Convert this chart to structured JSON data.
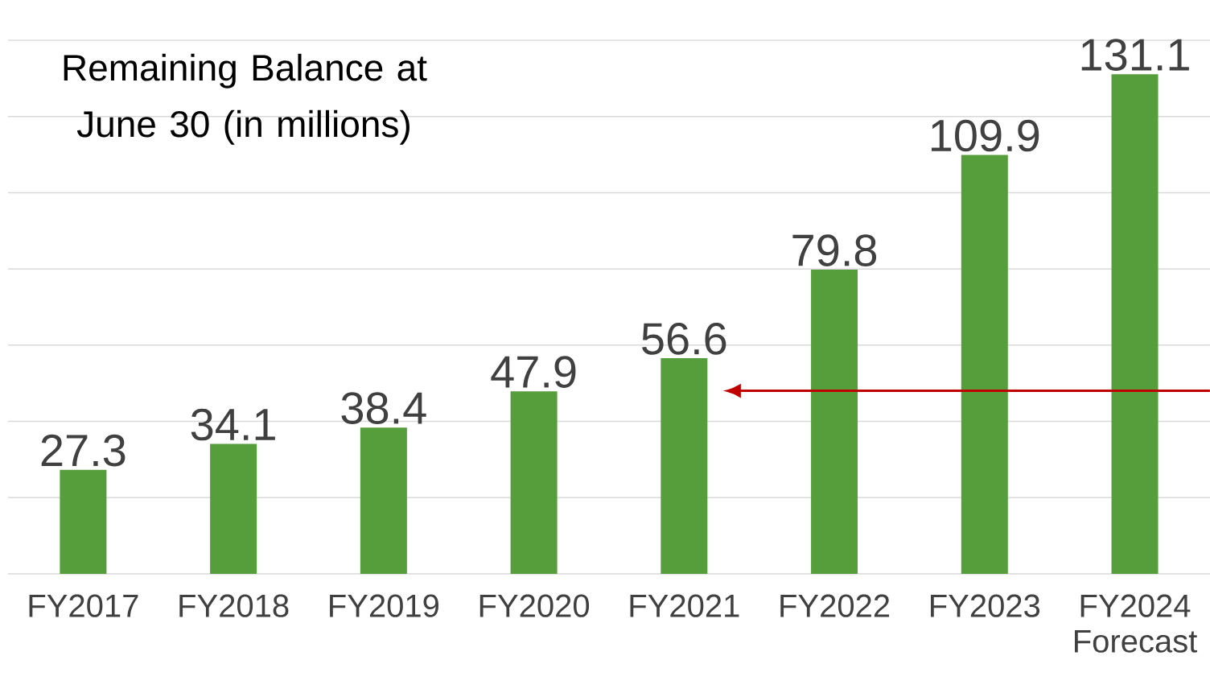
{
  "chart_data": {
    "type": "bar",
    "title": "Remaining Balance at June 30 (in millions)",
    "categories": [
      "FY2017",
      "FY2018",
      "FY2019",
      "FY2020",
      "FY2021",
      "FY2022",
      "FY2023",
      "FY2024 Forecast"
    ],
    "values": [
      27.3,
      34.1,
      38.4,
      47.9,
      56.6,
      79.8,
      109.9,
      131.1
    ],
    "color": "#559e3b",
    "ylim": [
      0,
      140
    ],
    "yticks": [
      {
        "value": 0,
        "label": null
      },
      {
        "value": 20,
        "label": null
      },
      {
        "value": 40,
        "label": null
      },
      {
        "value": 60,
        "label": null
      },
      {
        "value": 80,
        "label": null
      },
      {
        "value": 100,
        "label": null
      },
      {
        "value": 120,
        "label": null
      },
      {
        "value": 140,
        "label": null
      }
    ],
    "grid": "y",
    "data_labels": true,
    "tick_labels": "x"
  }
}
